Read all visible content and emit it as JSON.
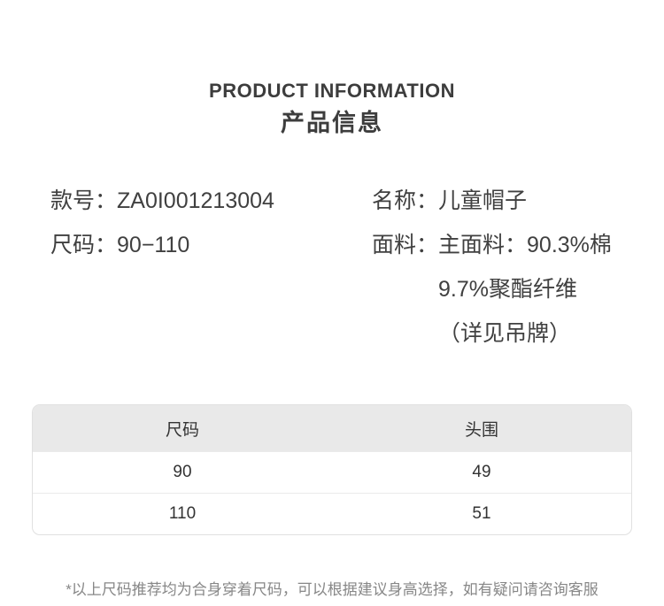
{
  "header": {
    "title_en": "PRODUCT INFORMATION",
    "title_zh": "产品信息"
  },
  "info": {
    "left": [
      {
        "label": "款号：",
        "value": "ZA0I001213004"
      },
      {
        "label": "尺码：",
        "value": "90−110"
      }
    ],
    "right": [
      {
        "label": "名称：",
        "lines": [
          "儿童帽子"
        ]
      },
      {
        "label": "面料：",
        "lines": [
          "主面料：90.3%棉",
          "9.7%聚酯纤维",
          "（详见吊牌）"
        ]
      }
    ]
  },
  "size_table": {
    "headers": [
      "尺码",
      "头围"
    ],
    "rows": [
      [
        "90",
        "49"
      ],
      [
        "110",
        "51"
      ]
    ]
  },
  "footnote": "*以上尺码推荐均为合身穿着尺码，可以根据建议身高选择，如有疑问请咨询客服",
  "colors": {
    "text": "#404040",
    "table_header_bg": "#e9e9e9",
    "table_border": "#e0e0e0",
    "footnote_text": "#878787"
  }
}
